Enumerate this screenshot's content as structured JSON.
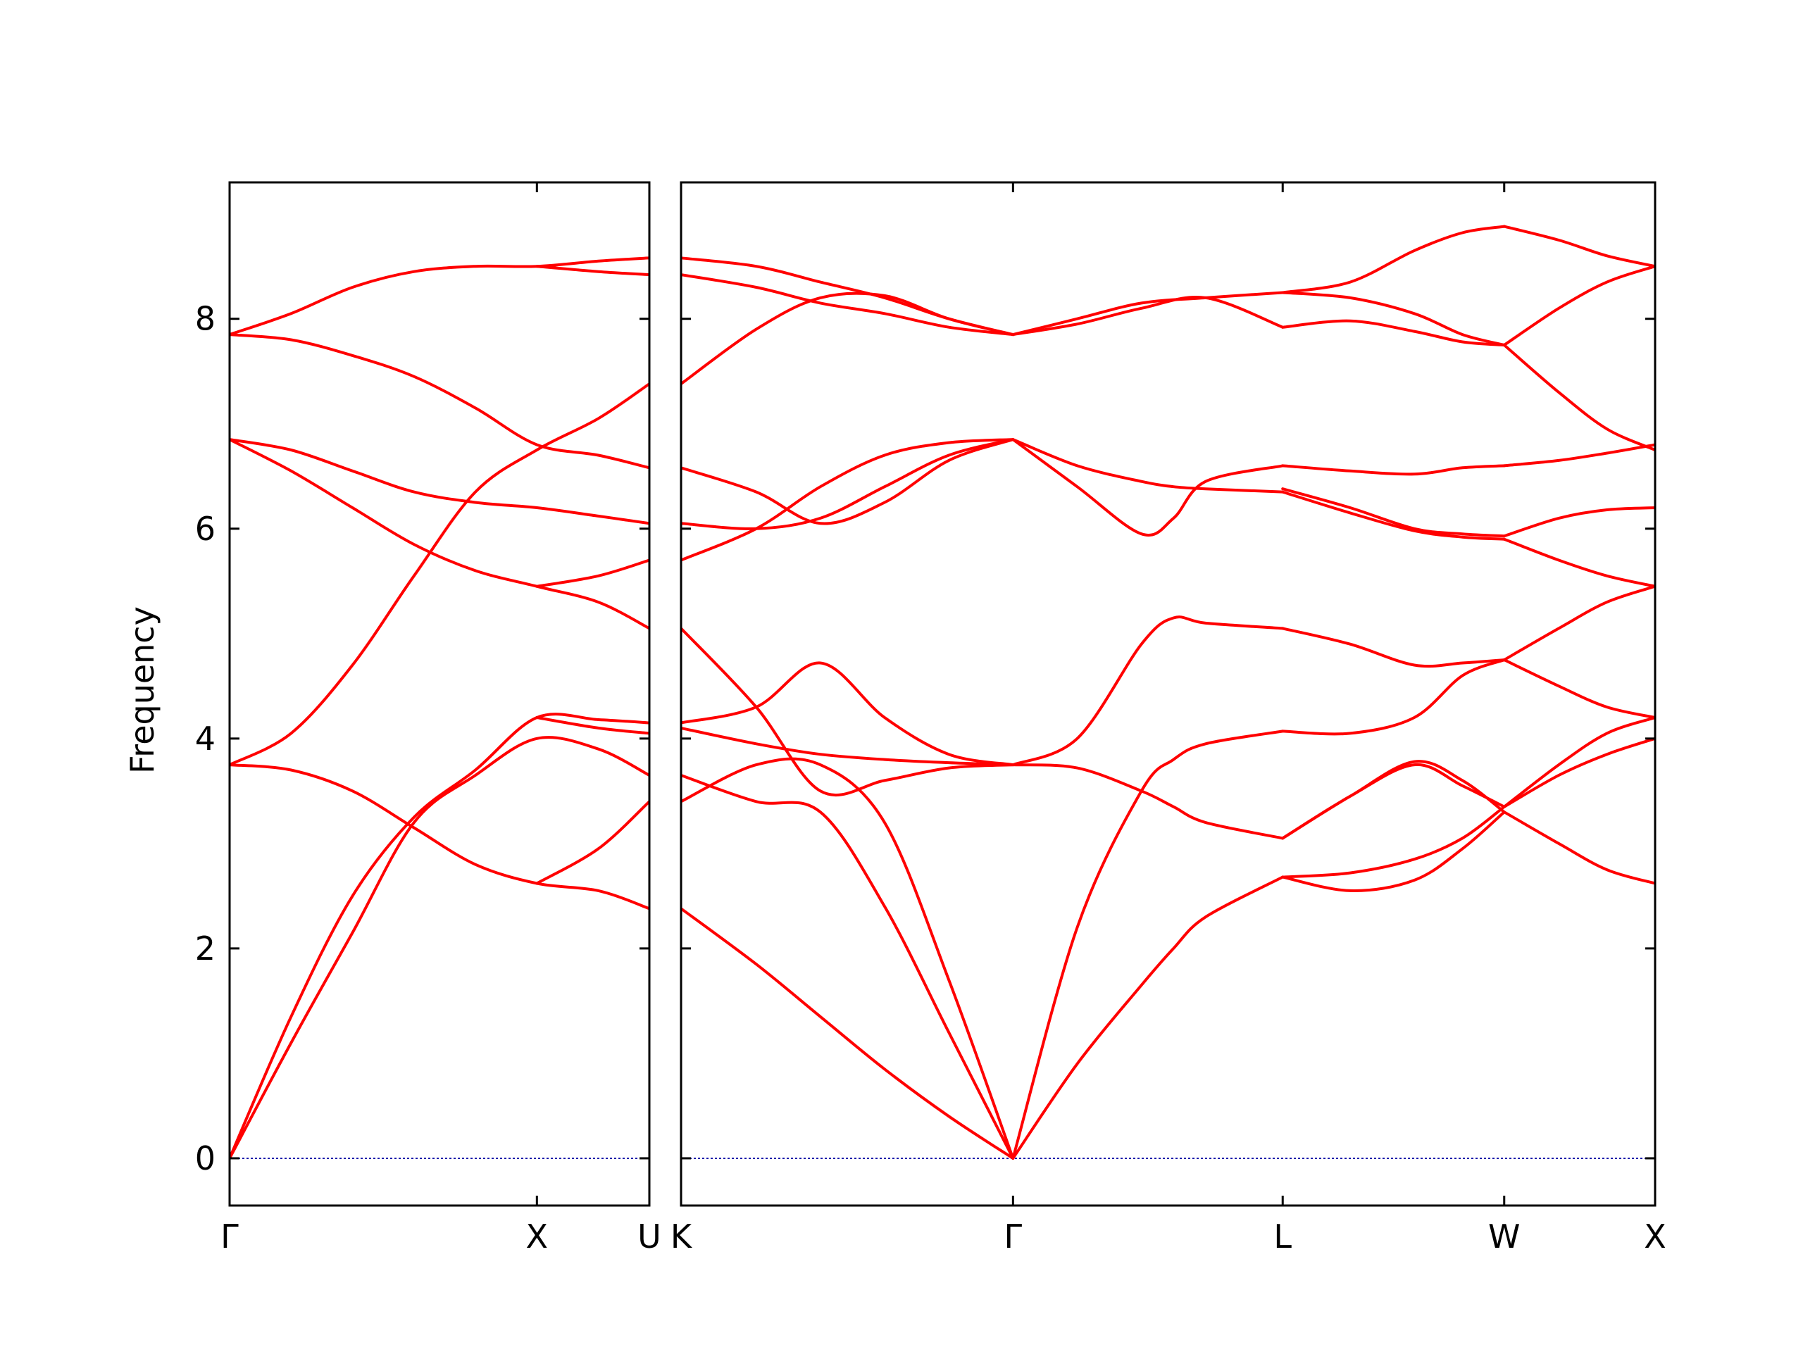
{
  "chart_data": {
    "type": "line",
    "title": "",
    "ylabel": "Frequency",
    "ylim": [
      -0.45,
      9.3
    ],
    "y_ticks": [
      0,
      2,
      4,
      6,
      8
    ],
    "zero_line": true,
    "line_color": "#ff0000",
    "zero_line_color": "#0000aa",
    "panels": [
      {
        "xlim": [
          0,
          1.366
        ],
        "ticks": [
          {
            "label": "Γ",
            "x": 0
          },
          {
            "label": "X",
            "x": 1.0
          },
          {
            "label": "U",
            "x": 1.366
          }
        ],
        "bands": [
          {
            "x": [
              0,
              0.2,
              0.4,
              0.6,
              0.8,
              1.0,
              1.2,
              1.366
            ],
            "y": [
              7.85,
              8.05,
              8.3,
              8.45,
              8.5,
              8.5,
              8.55,
              8.58
            ]
          },
          {
            "x": [
              0,
              0.2,
              0.4,
              0.6,
              0.8,
              1.0,
              1.2,
              1.366
            ],
            "y": [
              7.85,
              7.8,
              7.65,
              7.45,
              7.15,
              6.8,
              6.7,
              6.58
            ]
          },
          {
            "x": [
              0,
              0.2,
              0.4,
              0.6,
              0.8,
              1.0,
              1.2,
              1.366
            ],
            "y": [
              6.85,
              6.75,
              6.55,
              6.35,
              6.25,
              6.2,
              6.12,
              6.05
            ]
          },
          {
            "x": [
              0,
              0.2,
              0.4,
              0.6,
              0.8,
              1.0,
              1.2,
              1.366
            ],
            "y": [
              6.85,
              6.55,
              6.2,
              5.85,
              5.6,
              5.45,
              5.3,
              5.05
            ]
          },
          {
            "x": [
              0,
              0.2,
              0.4,
              0.6,
              0.8,
              1.0,
              1.2,
              1.366
            ],
            "y": [
              3.75,
              4.05,
              4.7,
              5.55,
              6.35,
              6.75,
              7.05,
              7.38
            ]
          },
          {
            "x": [
              0,
              0.2,
              0.4,
              0.6,
              0.8,
              1.0,
              1.2,
              1.366
            ],
            "y": [
              3.75,
              3.7,
              3.5,
              3.15,
              2.8,
              2.62,
              2.55,
              2.38
            ]
          },
          {
            "x": [
              0,
              0.2,
              0.4,
              0.6,
              0.8,
              1.0,
              1.2,
              1.366
            ],
            "y": [
              0,
              1.35,
              2.5,
              3.25,
              3.7,
              4.2,
              4.18,
              4.15
            ]
          },
          {
            "x": [
              0,
              0.2,
              0.4,
              0.6,
              0.8,
              1.0,
              1.2,
              1.366
            ],
            "y": [
              0,
              1.1,
              2.15,
              3.2,
              3.65,
              4.0,
              3.9,
              3.65
            ]
          },
          {
            "x": [
              1.0,
              1.2,
              1.366
            ],
            "y": [
              5.45,
              5.55,
              5.7
            ]
          },
          {
            "x": [
              1.0,
              1.2,
              1.366
            ],
            "y": [
              4.2,
              4.1,
              4.05
            ]
          },
          {
            "x": [
              1.0,
              1.2,
              1.366
            ],
            "y": [
              2.62,
              2.95,
              3.4
            ]
          },
          {
            "x": [
              1.0,
              1.2,
              1.366
            ],
            "y": [
              8.5,
              8.45,
              8.42
            ]
          }
        ]
      },
      {
        "xlim": [
          1.366,
          4.4
        ],
        "ticks": [
          {
            "label": "K",
            "x": 1.366
          },
          {
            "label": "Γ",
            "x": 2.4
          },
          {
            "label": "L",
            "x": 3.24
          },
          {
            "label": "W",
            "x": 3.93
          },
          {
            "label": "X",
            "x": 4.4
          }
        ],
        "bands": [
          {
            "x": [
              1.366,
              1.6,
              1.8,
              2.0,
              2.2,
              2.4
            ],
            "y": [
              8.58,
              8.5,
              8.35,
              8.2,
              8.0,
              7.85
            ]
          },
          {
            "x": [
              1.366,
              1.6,
              1.8,
              2.0,
              2.2,
              2.4
            ],
            "y": [
              8.42,
              8.3,
              8.15,
              8.05,
              7.92,
              7.85
            ]
          },
          {
            "x": [
              1.366,
              1.6,
              1.8,
              2.0,
              2.2,
              2.4
            ],
            "y": [
              7.38,
              7.9,
              8.2,
              8.22,
              8.0,
              7.85
            ]
          },
          {
            "x": [
              1.366,
              1.6,
              1.8,
              2.0,
              2.2,
              2.4
            ],
            "y": [
              6.58,
              6.35,
              6.05,
              6.25,
              6.65,
              6.85
            ]
          },
          {
            "x": [
              1.366,
              1.6,
              1.8,
              2.0,
              2.2,
              2.4
            ],
            "y": [
              6.05,
              6.0,
              6.1,
              6.4,
              6.7,
              6.85
            ]
          },
          {
            "x": [
              1.366,
              1.6,
              1.8,
              2.0,
              2.2,
              2.4
            ],
            "y": [
              5.7,
              6.0,
              6.4,
              6.7,
              6.82,
              6.85
            ]
          },
          {
            "x": [
              1.366,
              1.6,
              1.8,
              2.0,
              2.2,
              2.4
            ],
            "y": [
              4.15,
              4.3,
              4.72,
              4.2,
              3.85,
              3.75
            ]
          },
          {
            "x": [
              1.366,
              1.6,
              1.8,
              2.0,
              2.2,
              2.4
            ],
            "y": [
              4.1,
              3.95,
              3.85,
              3.8,
              3.77,
              3.75
            ]
          },
          {
            "x": [
              1.366,
              1.6,
              1.8,
              2.0,
              2.2,
              2.4
            ],
            "y": [
              5.05,
              4.3,
              3.5,
              3.6,
              3.72,
              3.75
            ]
          },
          {
            "x": [
              1.366,
              1.6,
              1.8,
              2.0,
              2.2,
              2.4
            ],
            "y": [
              3.4,
              3.75,
              3.75,
              3.2,
              1.7,
              0
            ]
          },
          {
            "x": [
              1.366,
              1.6,
              1.8,
              2.0,
              2.2,
              2.4
            ],
            "y": [
              3.65,
              3.4,
              3.3,
              2.4,
              1.2,
              0
            ]
          },
          {
            "x": [
              1.366,
              1.6,
              1.8,
              2.0,
              2.2,
              2.4
            ],
            "y": [
              2.38,
              1.85,
              1.35,
              0.85,
              0.4,
              0
            ]
          },
          {
            "x": [
              2.4,
              2.6,
              2.8,
              3.0,
              3.24
            ],
            "y": [
              7.85,
              8.0,
              8.15,
              8.2,
              8.25
            ]
          },
          {
            "x": [
              2.4,
              2.6,
              2.8,
              3.0,
              3.24
            ],
            "y": [
              7.85,
              7.95,
              8.1,
              8.2,
              7.92
            ]
          },
          {
            "x": [
              2.4,
              2.6,
              2.8,
              2.9,
              3.0,
              3.24
            ],
            "y": [
              6.85,
              6.6,
              6.45,
              6.4,
              6.38,
              6.35
            ]
          },
          {
            "x": [
              2.4,
              2.6,
              2.8,
              2.9,
              3.0,
              3.24
            ],
            "y": [
              6.85,
              6.4,
              5.95,
              6.1,
              6.45,
              6.6
            ]
          },
          {
            "x": [
              2.4,
              2.6,
              2.8,
              2.9,
              3.0,
              3.24
            ],
            "y": [
              3.75,
              4.0,
              4.9,
              5.15,
              5.1,
              5.05
            ]
          },
          {
            "x": [
              2.4,
              2.6,
              2.8,
              2.9,
              3.0,
              3.24
            ],
            "y": [
              3.75,
              3.72,
              3.5,
              3.35,
              3.2,
              3.05
            ]
          },
          {
            "x": [
              2.4,
              2.6,
              2.8,
              2.9,
              3.0,
              3.24
            ],
            "y": [
              0,
              2.2,
              3.5,
              3.8,
              3.95,
              4.07
            ]
          },
          {
            "x": [
              2.4,
              2.6,
              2.8,
              2.9,
              3.0,
              3.24
            ],
            "y": [
              0,
              0.9,
              1.65,
              2.0,
              2.3,
              2.68
            ]
          },
          {
            "x": [
              3.24,
              3.45,
              3.65,
              3.8,
              3.93
            ],
            "y": [
              8.25,
              8.35,
              8.65,
              8.82,
              8.88
            ]
          },
          {
            "x": [
              3.24,
              3.45,
              3.65,
              3.8,
              3.93
            ],
            "y": [
              7.92,
              7.98,
              7.88,
              7.78,
              7.75
            ]
          },
          {
            "x": [
              3.24,
              3.45,
              3.65,
              3.8,
              3.93
            ],
            "y": [
              8.25,
              8.2,
              8.05,
              7.85,
              7.75
            ]
          },
          {
            "x": [
              3.24,
              3.45,
              3.65,
              3.8,
              3.93
            ],
            "y": [
              6.6,
              6.55,
              6.52,
              6.58,
              6.6
            ]
          },
          {
            "x": [
              3.24,
              3.45,
              3.65,
              3.8,
              3.93
            ],
            "y": [
              6.38,
              6.2,
              6.0,
              5.95,
              5.93
            ]
          },
          {
            "x": [
              3.24,
              3.45,
              3.65,
              3.8,
              3.93
            ],
            "y": [
              6.35,
              6.15,
              5.98,
              5.92,
              5.9
            ]
          },
          {
            "x": [
              3.24,
              3.45,
              3.65,
              3.8,
              3.93
            ],
            "y": [
              5.05,
              4.9,
              4.7,
              4.72,
              4.75
            ]
          },
          {
            "x": [
              3.24,
              3.45,
              3.65,
              3.8,
              3.93
            ],
            "y": [
              4.07,
              4.05,
              4.2,
              4.6,
              4.75
            ]
          },
          {
            "x": [
              3.24,
              3.45,
              3.65,
              3.8,
              3.93
            ],
            "y": [
              3.05,
              3.45,
              3.78,
              3.6,
              3.3
            ]
          },
          {
            "x": [
              3.24,
              3.45,
              3.65,
              3.8,
              3.93
            ],
            "y": [
              3.05,
              3.45,
              3.75,
              3.55,
              3.35
            ]
          },
          {
            "x": [
              3.24,
              3.45,
              3.65,
              3.8,
              3.93
            ],
            "y": [
              2.68,
              2.55,
              2.65,
              2.95,
              3.3
            ]
          },
          {
            "x": [
              3.24,
              3.45,
              3.65,
              3.8,
              3.93
            ],
            "y": [
              2.68,
              2.72,
              2.85,
              3.05,
              3.35
            ]
          },
          {
            "x": [
              3.93,
              4.1,
              4.25,
              4.4
            ],
            "y": [
              8.88,
              8.75,
              8.6,
              8.5
            ]
          },
          {
            "x": [
              3.93,
              4.1,
              4.25,
              4.4
            ],
            "y": [
              7.75,
              8.1,
              8.35,
              8.5
            ]
          },
          {
            "x": [
              3.93,
              4.1,
              4.25,
              4.4
            ],
            "y": [
              7.75,
              7.3,
              6.95,
              6.75
            ]
          },
          {
            "x": [
              3.93,
              4.1,
              4.25,
              4.4
            ],
            "y": [
              6.6,
              6.65,
              6.72,
              6.8
            ]
          },
          {
            "x": [
              3.93,
              4.1,
              4.25,
              4.4
            ],
            "y": [
              5.93,
              6.1,
              6.18,
              6.2
            ]
          },
          {
            "x": [
              3.93,
              4.1,
              4.25,
              4.4
            ],
            "y": [
              5.9,
              5.7,
              5.55,
              5.45
            ]
          },
          {
            "x": [
              3.93,
              4.1,
              4.25,
              4.4
            ],
            "y": [
              4.75,
              5.05,
              5.3,
              5.45
            ]
          },
          {
            "x": [
              3.93,
              4.1,
              4.25,
              4.4
            ],
            "y": [
              4.75,
              4.5,
              4.3,
              4.2
            ]
          },
          {
            "x": [
              3.93,
              4.1,
              4.25,
              4.4
            ],
            "y": [
              3.35,
              3.75,
              4.05,
              4.2
            ]
          },
          {
            "x": [
              3.93,
              4.1,
              4.25,
              4.4
            ],
            "y": [
              3.35,
              3.65,
              3.85,
              4.0
            ]
          },
          {
            "x": [
              3.93,
              4.1,
              4.25,
              4.4
            ],
            "y": [
              3.3,
              3.0,
              2.75,
              2.62
            ]
          }
        ]
      }
    ]
  }
}
